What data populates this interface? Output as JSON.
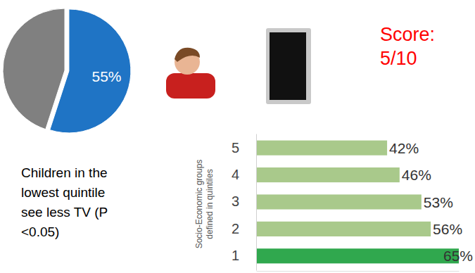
{
  "chart_data": [
    {
      "type": "pie",
      "values": [
        55,
        45
      ],
      "value_labels": [
        "55%",
        null
      ],
      "colors": [
        "#1f74c5",
        "#808080"
      ],
      "data_labels": true,
      "annotations": [
        "Score: 5/10"
      ]
    },
    {
      "type": "bar",
      "orientation": "horizontal",
      "categories": [
        "5",
        "4",
        "3",
        "2",
        "1"
      ],
      "values": [
        42,
        46,
        53,
        56,
        65
      ],
      "value_labels": [
        "42%",
        "46%",
        "53%",
        "56%",
        "65%"
      ],
      "colors": [
        "#a9c98b",
        "#a9c98b",
        "#a9c98b",
        "#a9c98b",
        "#30a84e"
      ],
      "data_labels": true,
      "tick_labels": "y",
      "xlim": [
        0,
        65
      ],
      "ylabel": "Socio-Economic groups defined in quintiles",
      "annotations": [
        "Children in the lowest quintile see less TV (P <0.05)"
      ]
    }
  ]
}
